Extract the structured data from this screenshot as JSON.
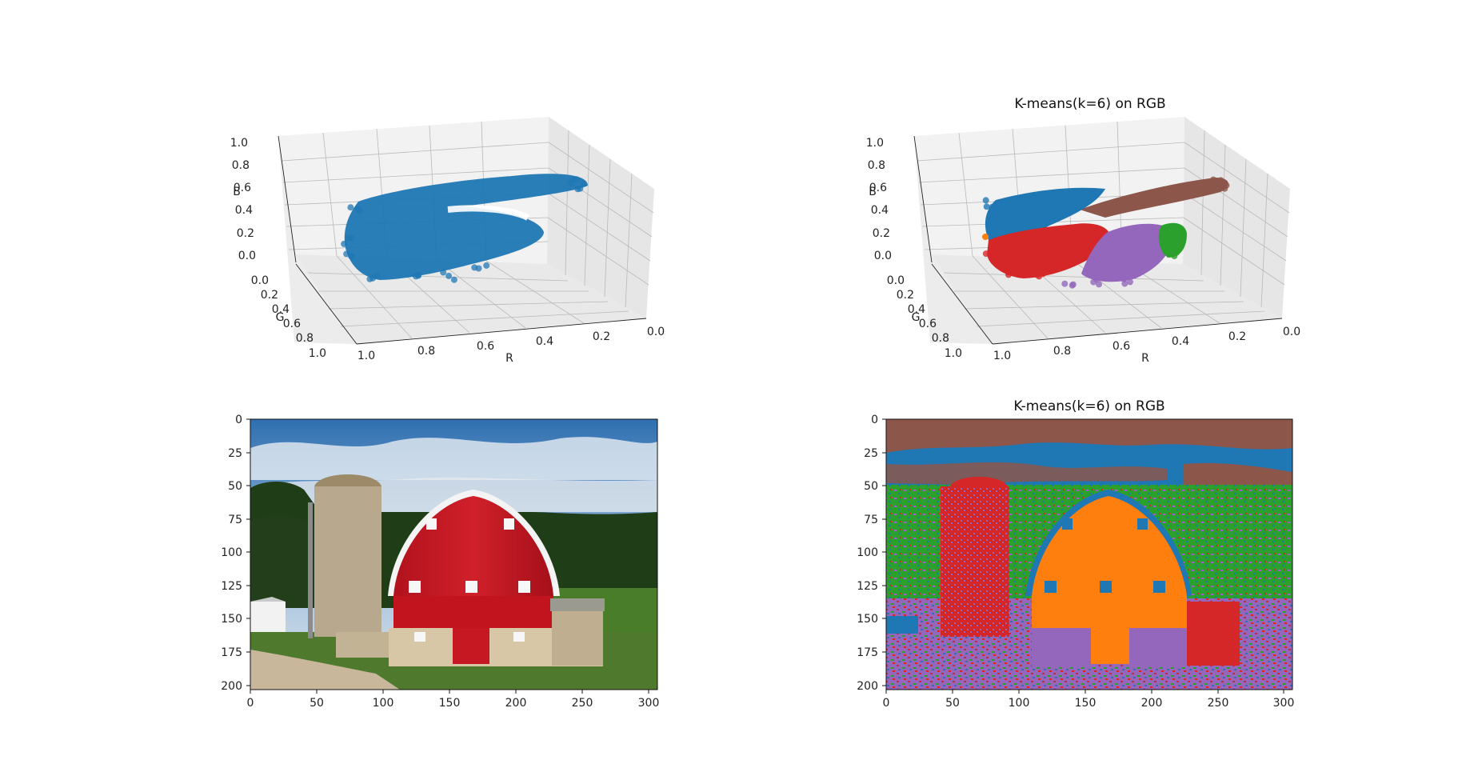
{
  "figure": {
    "panels": [
      {
        "id": "scatter-raw",
        "title": ""
      },
      {
        "id": "scatter-kmeans",
        "title": "K-means(k=6) on RGB"
      },
      {
        "id": "image-original",
        "title": ""
      },
      {
        "id": "image-kmeans",
        "title": "K-means(k=6) on RGB"
      }
    ]
  },
  "chart_data": [
    {
      "type": "scatter",
      "dimensions": 3,
      "title": "",
      "xlabel": "R",
      "ylabel": "G",
      "zlabel": "B",
      "xlim": [
        0,
        1
      ],
      "ylim": [
        0,
        1
      ],
      "zlim": [
        0,
        1
      ],
      "ticks": {
        "R": [
          "1.0",
          "0.8",
          "0.6",
          "0.4",
          "0.2",
          "0.0"
        ],
        "G": [
          "0.0",
          "0.2",
          "0.4",
          "0.6",
          "0.8",
          "1.0"
        ],
        "B": [
          "0.0",
          "0.2",
          "0.4",
          "0.6",
          "0.8",
          "1.0"
        ]
      },
      "grid": true,
      "series": [
        {
          "color": "#1f77b4"
        }
      ]
    },
    {
      "type": "scatter",
      "dimensions": 3,
      "title": "K-means(k=6) on RGB",
      "xlabel": "R",
      "ylabel": "G",
      "zlabel": "B",
      "xlim": [
        0,
        1
      ],
      "ylim": [
        0,
        1
      ],
      "zlim": [
        0,
        1
      ],
      "ticks": {
        "R": [
          "1.0",
          "0.8",
          "0.6",
          "0.4",
          "0.2",
          "0.0"
        ],
        "G": [
          "0.0",
          "0.2",
          "0.4",
          "0.6",
          "0.8",
          "1.0"
        ],
        "B": [
          "0.0",
          "0.2",
          "0.4",
          "0.6",
          "0.8",
          "1.0"
        ]
      },
      "grid": true,
      "clusters": [
        {
          "cluster": 0,
          "color": "#1f77b4"
        },
        {
          "cluster": 1,
          "color": "#ff7f0e"
        },
        {
          "cluster": 2,
          "color": "#2ca02c"
        },
        {
          "cluster": 3,
          "color": "#d62728"
        },
        {
          "cluster": 4,
          "color": "#9467bd"
        },
        {
          "cluster": 5,
          "color": "#8c564b"
        }
      ]
    },
    {
      "type": "image",
      "title": "",
      "x_ticks": [
        "0",
        "50",
        "100",
        "150",
        "200",
        "250",
        "300"
      ],
      "y_ticks": [
        "0",
        "25",
        "50",
        "75",
        "100",
        "125",
        "150",
        "175",
        "200"
      ],
      "xlim": [
        0,
        306
      ],
      "ylim": [
        203,
        0
      ]
    },
    {
      "type": "heatmap",
      "title": "K-means(k=6) on RGB",
      "x_ticks": [
        "0",
        "50",
        "100",
        "150",
        "200",
        "250",
        "300"
      ],
      "y_ticks": [
        "0",
        "25",
        "50",
        "75",
        "100",
        "125",
        "150",
        "175",
        "200"
      ],
      "xlim": [
        0,
        306
      ],
      "ylim": [
        203,
        0
      ],
      "label_colors": [
        "#1f77b4",
        "#ff7f0e",
        "#2ca02c",
        "#d62728",
        "#9467bd",
        "#8c564b"
      ]
    }
  ]
}
